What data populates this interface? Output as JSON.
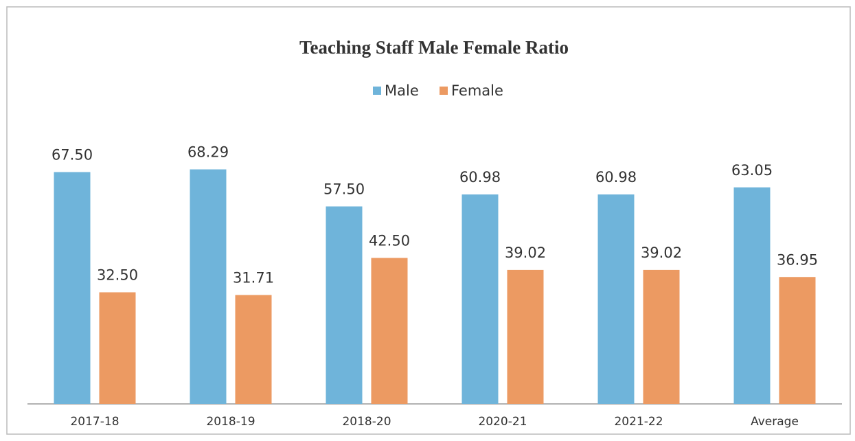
{
  "chart_data": {
    "type": "bar",
    "title": "Teaching Staff Male Female Ratio",
    "categories": [
      "2017-18",
      "2018-19",
      "2018-20",
      "2020-21",
      "2021-22",
      "Average"
    ],
    "series": [
      {
        "name": "Male",
        "color": "#6fb4da",
        "values": [
          67.5,
          68.29,
          57.5,
          60.98,
          60.98,
          63.05
        ],
        "value_labels": [
          "67.50",
          "68.29",
          "57.50",
          "60.98",
          "60.98",
          "63.05"
        ]
      },
      {
        "name": "Female",
        "color": "#ec9a62",
        "values": [
          32.5,
          31.71,
          42.5,
          39.02,
          39.02,
          36.95
        ],
        "value_labels": [
          "32.50",
          "31.71",
          "42.50",
          "39.02",
          "39.02",
          "36.95"
        ]
      }
    ],
    "legend": "top"
  }
}
